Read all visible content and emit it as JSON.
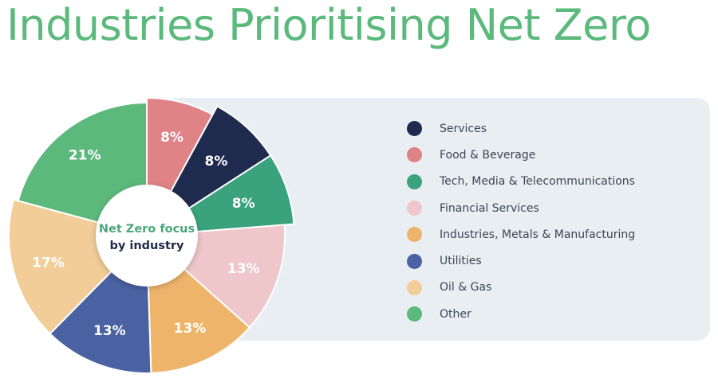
{
  "title": "Industries Prioritising Net Zero",
  "chart_data": {
    "type": "pie",
    "donut": true,
    "center_label": [
      "Net Zero focus",
      "by industry"
    ],
    "legend_position": "right",
    "slices": [
      {
        "label": "Services",
        "value": 8,
        "value_label": "8%",
        "color": "#1f2b4e"
      },
      {
        "label": "Food & Beverage",
        "value": 8,
        "value_label": "8%",
        "color": "#e08387"
      },
      {
        "label": "Tech, Media & Telecommunications",
        "value": 8,
        "value_label": "8%",
        "color": "#3aa27d"
      },
      {
        "label": "Financial Services",
        "value": 13,
        "value_label": "13%",
        "color": "#efc6ca"
      },
      {
        "label": "Industries, Metals & Manufacturing",
        "value": 13,
        "value_label": "13%",
        "color": "#eeb56a"
      },
      {
        "label": "Utilities",
        "value": 13,
        "value_label": "13%",
        "color": "#4a62a1"
      },
      {
        "label": "Oil & Gas",
        "value": 17,
        "value_label": "17%",
        "color": "#f2cd98"
      },
      {
        "label": "Other",
        "value": 21,
        "value_label": "21%",
        "color": "#5cb97c"
      }
    ],
    "draw_order": [
      "Food & Beverage",
      "Services",
      "Tech, Media & Telecommunications",
      "Financial Services",
      "Industries, Metals & Manufacturing",
      "Utilities",
      "Oil & Gas",
      "Other"
    ]
  }
}
